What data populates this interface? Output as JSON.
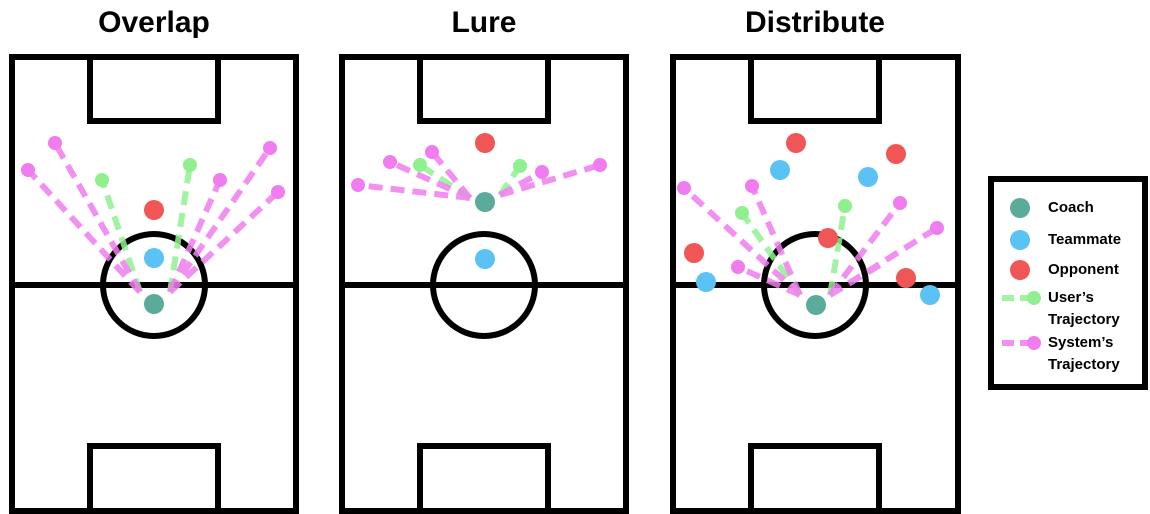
{
  "panels": [
    {
      "title": "Overlap"
    },
    {
      "title": "Lure"
    },
    {
      "title": "Distribute"
    }
  ],
  "legend": [
    "Coach",
    "Teammate",
    "Opponent",
    "User’s Trajectory",
    "System’s Trajectory"
  ]
}
